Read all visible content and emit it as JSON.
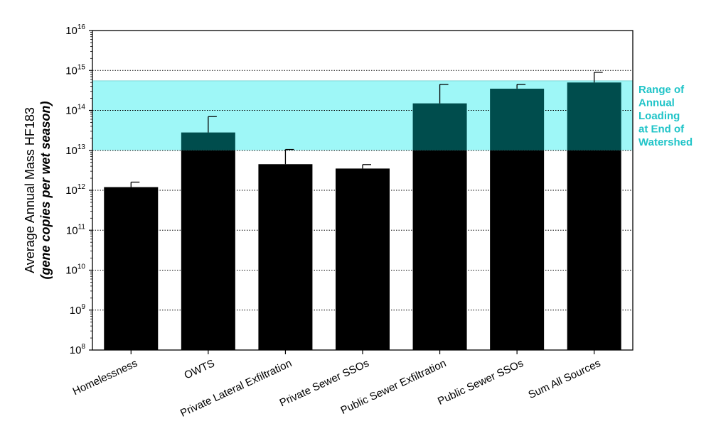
{
  "chart_data": {
    "type": "bar",
    "ylabel": "Average Annual Mass HF183",
    "ylabel_italic": "gene copies per wet season",
    "yscale": "log10",
    "ylim": [
      100000000.0,
      1e+16
    ],
    "y_tick_labels": [
      {
        "base": "10",
        "exp": "8"
      },
      {
        "base": "10",
        "exp": "9"
      },
      {
        "base": "10",
        "exp": "10"
      },
      {
        "base": "10",
        "exp": "11"
      },
      {
        "base": "10",
        "exp": "12"
      },
      {
        "base": "10",
        "exp": "13"
      },
      {
        "base": "10",
        "exp": "14"
      },
      {
        "base": "10",
        "exp": "15"
      },
      {
        "base": "10",
        "exp": "16"
      }
    ],
    "grid": "horizontal dotted at each decade",
    "categories": [
      "Homelessness",
      "OWTS",
      "Private Lateral Exfiltration",
      "Private Sewer SSOs",
      "Public Sewer Exfiltration",
      "Public Sewer SSOs",
      "Sum All Sources"
    ],
    "values": [
      1200000000000.0,
      28000000000000.0,
      4500000000000.0,
      3500000000000.0,
      150000000000000.0,
      350000000000000.0,
      500000000000000.0
    ],
    "error_upper": [
      1600000000000.0,
      70000000000000.0,
      10500000000000.0,
      4400000000000.0,
      450000000000000.0,
      450000000000000.0,
      900000000000000.0
    ],
    "band": {
      "label_lines": [
        "Range of",
        "Annual",
        "Loading",
        "at End of",
        "Watershed"
      ],
      "range": [
        10000000000000.0,
        550000000000000.0
      ],
      "color": "#9ef7f7"
    },
    "colors": {
      "bar": "#000000",
      "bar_in_band": "#004d4d",
      "band_label": "#20c4c8"
    }
  }
}
